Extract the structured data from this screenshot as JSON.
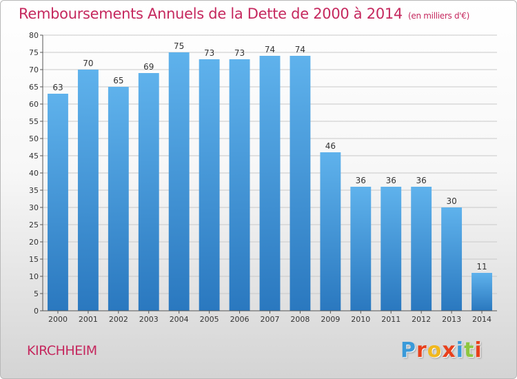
{
  "header": {
    "title": "Remboursements Annuels de la Dette de 2000 à 2014",
    "subtitle": "(en milliers d'€)"
  },
  "location": "KIRCHHEIM",
  "logo": {
    "letters": [
      "P",
      "r",
      "o",
      "x",
      "i",
      "t",
      "i"
    ],
    "colors": [
      "#3a9ad9",
      "#e8401c",
      "#f1b81e",
      "#e8401c",
      "#3a9ad9",
      "#8dc63f",
      "#e8401c"
    ]
  },
  "colors": {
    "title": "#c5285e",
    "bar_top": "#5fb2ec",
    "bar_bottom": "#2a78bf",
    "grid": "#c8c8c8"
  },
  "chart_data": {
    "type": "bar",
    "categories": [
      "2000",
      "2001",
      "2002",
      "2003",
      "2004",
      "2005",
      "2006",
      "2007",
      "2008",
      "2009",
      "2010",
      "2011",
      "2012",
      "2013",
      "2014"
    ],
    "values": [
      63,
      70,
      65,
      69,
      75,
      73,
      73,
      74,
      74,
      46,
      36,
      36,
      36,
      30,
      11
    ],
    "ylim": [
      0,
      80
    ],
    "yticks": [
      0,
      5,
      10,
      15,
      20,
      25,
      30,
      35,
      40,
      45,
      50,
      55,
      60,
      65,
      70,
      75,
      80
    ],
    "grid": true,
    "data_labels": true
  }
}
